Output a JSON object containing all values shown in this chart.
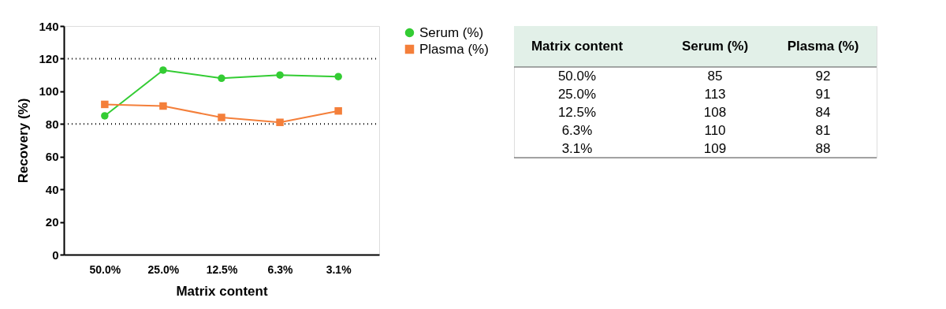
{
  "chart_data": [
    {
      "type": "line",
      "xlabel": "Matrix content",
      "ylabel": "Recovery (%)",
      "categories": [
        "50.0%",
        "25.0%",
        "12.5%",
        "6.3%",
        "3.1%"
      ],
      "series": [
        {
          "name": "Serum (%)",
          "color": "#33cc33",
          "marker": "circle",
          "values": [
            85,
            113,
            108,
            110,
            109
          ]
        },
        {
          "name": "Plasma (%)",
          "color": "#f47f3a",
          "marker": "square",
          "values": [
            92,
            91,
            84,
            81,
            88
          ]
        }
      ],
      "ylim": [
        0,
        140
      ],
      "yticks": [
        0,
        20,
        40,
        60,
        80,
        100,
        120,
        140
      ],
      "ref_lines": [
        {
          "axis": "y",
          "value": 80,
          "color": "#000000",
          "line_style": "dotted"
        },
        {
          "axis": "y",
          "value": 120,
          "color": "#000000",
          "line_style": "dotted"
        }
      ],
      "grid": false,
      "legend": "right"
    },
    {
      "type": "other",
      "xlabel": "Matrix content",
      "categories": [
        "50.0%",
        "25.0%",
        "12.5%",
        "6.3%",
        "3.1%"
      ],
      "series": [
        {
          "name": "Serum (%)",
          "values": [
            85,
            113,
            108,
            110,
            109
          ]
        },
        {
          "name": "Plasma (%)",
          "values": [
            92,
            91,
            84,
            81,
            88
          ]
        }
      ],
      "data_labels": true
    }
  ]
}
